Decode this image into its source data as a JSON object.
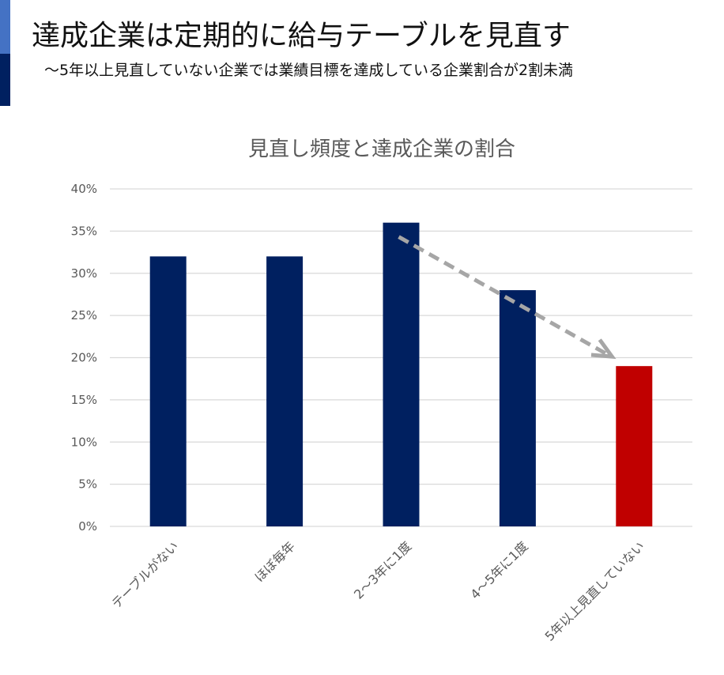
{
  "header": {
    "title": "達成企業は定期的に給与テーブルを見直す",
    "subtitle": "～5年以上見直していない企業では業績目標を達成している企業割合が2割未満"
  },
  "colors": {
    "accent_light": "#4472c4",
    "accent_dark": "#002060",
    "bar_default": "#002060",
    "bar_highlight": "#c00000",
    "arrow": "#a6a6a6",
    "grid": "#d9d9d9",
    "text_gray": "#595959"
  },
  "chart_data": {
    "type": "bar",
    "title": "見直し頻度と達成企業の割合",
    "categories": [
      "テーブルがない",
      "ほぼ毎年",
      "2～3年に1度",
      "4～5年に1度",
      "5年以上見直していない"
    ],
    "values": [
      32,
      32,
      36,
      28,
      19
    ],
    "highlight_index": 4,
    "ylim": [
      0,
      40
    ],
    "yticks": [
      0,
      5,
      10,
      15,
      20,
      25,
      30,
      35,
      40
    ],
    "ytick_labels": [
      "0%",
      "5%",
      "10%",
      "15%",
      "20%",
      "25%",
      "30%",
      "35%",
      "40%"
    ],
    "grid": true,
    "annotation": {
      "type": "dashed-arrow",
      "from_index": 2,
      "to_index": 4
    }
  }
}
